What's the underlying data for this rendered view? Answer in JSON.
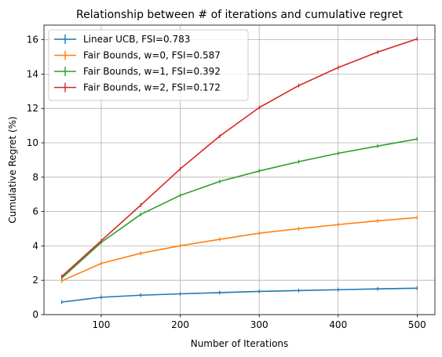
{
  "chart_data": {
    "type": "line",
    "title": "Relationship between # of iterations and cumulative regret",
    "xlabel": "Number of Iterations",
    "ylabel": "Cumulative Regret (%)",
    "xlim": [
      27.5,
      522.5
    ],
    "ylim": [
      0,
      16.85
    ],
    "xticks": [
      100,
      200,
      300,
      400,
      500
    ],
    "yticks": [
      0,
      2,
      4,
      6,
      8,
      10,
      12,
      14,
      16
    ],
    "grid": true,
    "legend_position": "upper left",
    "x": [
      50,
      100,
      150,
      200,
      250,
      300,
      350,
      400,
      450,
      500
    ],
    "series": [
      {
        "name": "Linear UCB, FSI=0.783",
        "color": "#1f77b4",
        "values": [
          0.73,
          1.01,
          1.13,
          1.21,
          1.28,
          1.35,
          1.4,
          1.45,
          1.5,
          1.54
        ]
      },
      {
        "name": "Fair Bounds, w=0, FSI=0.587",
        "color": "#ff7f0e",
        "values": [
          1.96,
          2.98,
          3.57,
          4.01,
          4.38,
          4.74,
          5.0,
          5.24,
          5.46,
          5.65
        ]
      },
      {
        "name": "Fair Bounds, w=1, FSI=0.392",
        "color": "#2ca02c",
        "values": [
          2.12,
          4.2,
          5.83,
          6.94,
          7.75,
          8.36,
          8.9,
          9.39,
          9.81,
          10.22
        ]
      },
      {
        "name": "Fair Bounds, w=2, FSI=0.172",
        "color": "#d62728",
        "values": [
          2.22,
          4.3,
          6.37,
          8.48,
          10.39,
          12.05,
          13.33,
          14.38,
          15.28,
          16.05
        ]
      }
    ]
  }
}
